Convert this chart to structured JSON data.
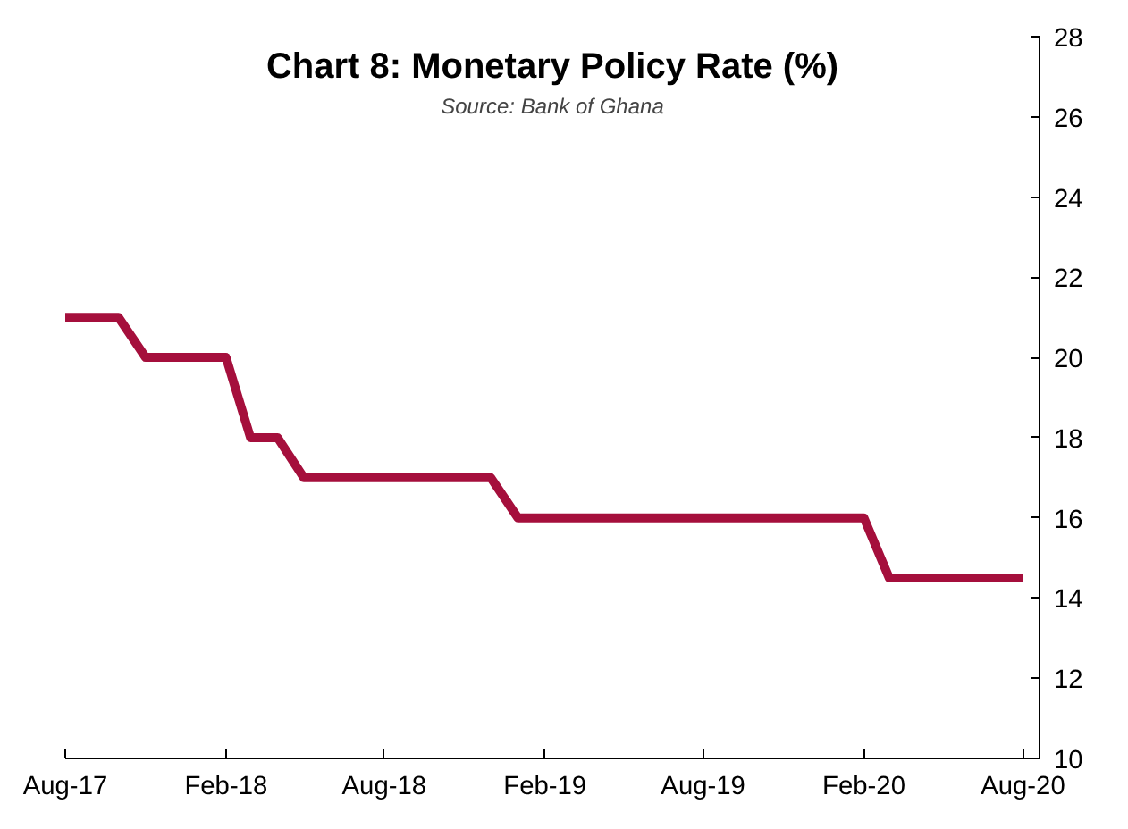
{
  "chart_data": {
    "type": "line",
    "title": "Chart 8: Monetary Policy Rate (%)",
    "annotations": [
      "Source: Bank of Ghana"
    ],
    "x": [
      "2017-08",
      "2017-09",
      "2017-10",
      "2017-11",
      "2017-12",
      "2018-01",
      "2018-02",
      "2018-03",
      "2018-04",
      "2018-05",
      "2018-06",
      "2018-07",
      "2018-08",
      "2018-09",
      "2018-10",
      "2018-11",
      "2018-12",
      "2019-01",
      "2019-02",
      "2019-03",
      "2019-04",
      "2019-05",
      "2019-06",
      "2019-07",
      "2019-08",
      "2019-09",
      "2019-10",
      "2019-11",
      "2019-12",
      "2020-01",
      "2020-02",
      "2020-03",
      "2020-04",
      "2020-05",
      "2020-06",
      "2020-07",
      "2020-08"
    ],
    "series": [
      {
        "color": "#a50f3c",
        "values": [
          21,
          21,
          21,
          20,
          20,
          20,
          20,
          18,
          18,
          17,
          17,
          17,
          17,
          17,
          17,
          17,
          17,
          16,
          16,
          16,
          16,
          16,
          16,
          16,
          16,
          16,
          16,
          16,
          16,
          16,
          16,
          14.5,
          14.5,
          14.5,
          14.5,
          14.5,
          14.5
        ]
      }
    ],
    "xlim": [
      "2017-08",
      "2020-08-20"
    ],
    "xticks": [
      {
        "value": "2017-08",
        "label": "Aug-17"
      },
      {
        "value": "2018-02",
        "label": "Feb-18"
      },
      {
        "value": "2018-08",
        "label": "Aug-18"
      },
      {
        "value": "2019-02",
        "label": "Feb-19"
      },
      {
        "value": "2019-08",
        "label": "Aug-19"
      },
      {
        "value": "2020-02",
        "label": "Feb-20"
      },
      {
        "value": "2020-08",
        "label": "Aug-20"
      }
    ],
    "ylim": [
      10,
      28
    ],
    "yticks": [
      10,
      12,
      14,
      16,
      18,
      20,
      22,
      24,
      26,
      28
    ],
    "grid": false,
    "marker": "none",
    "line_style": "solid"
  }
}
